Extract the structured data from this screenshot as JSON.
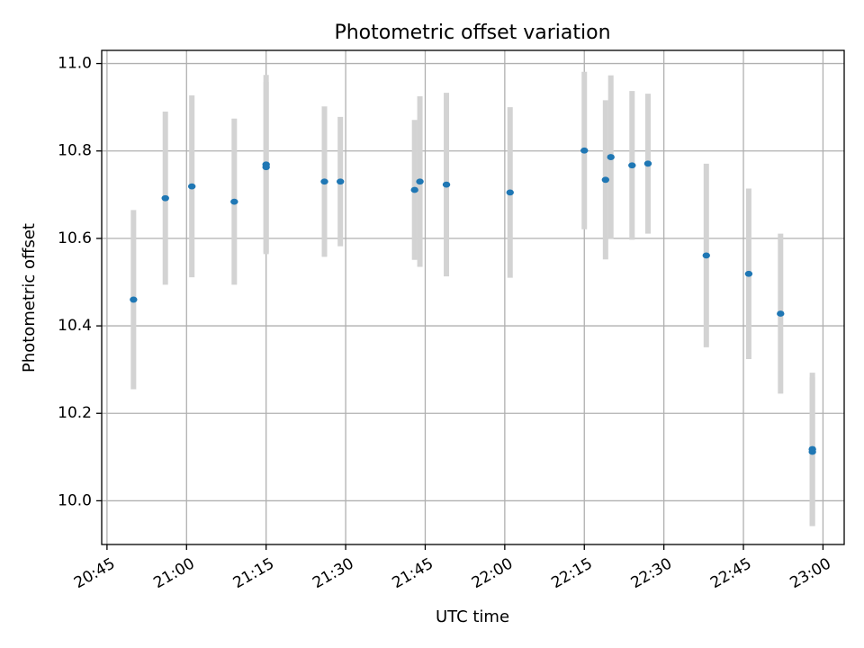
{
  "chart_data": {
    "type": "scatter",
    "title": "Photometric offset variation",
    "xlabel": "UTC time",
    "ylabel": "Photometric offset",
    "xlim": [
      "20:44",
      "23:04"
    ],
    "ylim": [
      9.9,
      11.03
    ],
    "grid": true,
    "x_ticks": [
      "20:45",
      "21:00",
      "21:15",
      "21:30",
      "21:45",
      "22:00",
      "22:15",
      "22:30",
      "22:45",
      "23:00"
    ],
    "y_ticks": [
      "10.0",
      "10.2",
      "10.4",
      "10.6",
      "10.8",
      "11.0"
    ],
    "colors": {
      "points": "#1f77b4",
      "errorbars": "#d3d3d3",
      "grid": "#b0b0b0"
    },
    "series": [
      {
        "points": [
          {
            "x": "20:50",
            "y": 10.46,
            "err": 0.205
          },
          {
            "x": "20:56",
            "y": 10.692,
            "err": 0.198
          },
          {
            "x": "21:01",
            "y": 10.719,
            "err": 0.208
          },
          {
            "x": "21:09",
            "y": 10.684,
            "err": 0.19
          },
          {
            "x": "21:15",
            "y": 10.769,
            "err": 0.205
          },
          {
            "x": "21:15",
            "y": 10.763,
            "err": 0.195
          },
          {
            "x": "21:26",
            "y": 10.73,
            "err": 0.172
          },
          {
            "x": "21:29",
            "y": 10.73,
            "err": 0.148
          },
          {
            "x": "21:43",
            "y": 10.711,
            "err": 0.16
          },
          {
            "x": "21:44",
            "y": 10.73,
            "err": 0.195
          },
          {
            "x": "21:49",
            "y": 10.723,
            "err": 0.21
          },
          {
            "x": "22:01",
            "y": 10.705,
            "err": 0.195
          },
          {
            "x": "22:15",
            "y": 10.801,
            "err": 0.18
          },
          {
            "x": "22:19",
            "y": 10.734,
            "err": 0.182
          },
          {
            "x": "22:20",
            "y": 10.786,
            "err": 0.187
          },
          {
            "x": "22:24",
            "y": 10.767,
            "err": 0.17
          },
          {
            "x": "22:27",
            "y": 10.771,
            "err": 0.16
          },
          {
            "x": "22:38",
            "y": 10.561,
            "err": 0.21
          },
          {
            "x": "22:46",
            "y": 10.519,
            "err": 0.195
          },
          {
            "x": "22:52",
            "y": 10.428,
            "err": 0.183
          },
          {
            "x": "22:58",
            "y": 10.118,
            "err": 0.175
          },
          {
            "x": "22:58",
            "y": 10.112,
            "err": 0.17
          }
        ]
      }
    ]
  }
}
